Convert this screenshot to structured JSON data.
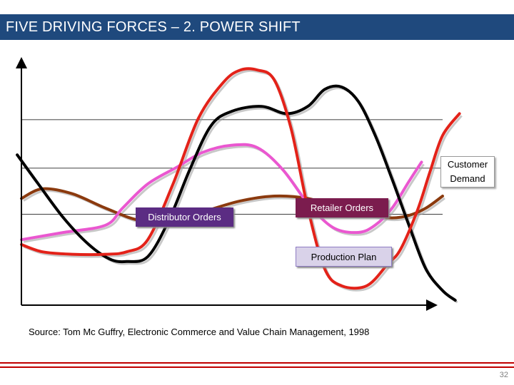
{
  "slide": {
    "title": "FIVE DRIVING FORCES – 2. POWER SHIFT",
    "source": "Source: Tom Mc Guffry, Electronic Commerce and Value Chain Management, 1998",
    "page_number": "32"
  },
  "chart_data": {
    "type": "line",
    "title": "",
    "xlabel": "",
    "ylabel": "",
    "x_ticks": [],
    "y_ticks": [],
    "grid": "horizontal",
    "gridline_levels": [
      0.765,
      0.565,
      0.375
    ],
    "ylim": [
      0,
      1
    ],
    "xlim": [
      0,
      1
    ],
    "series": [
      {
        "name": "Customer Demand",
        "color": "#8b3a0e",
        "points": [
          [
            0,
            0.44
          ],
          [
            0.05,
            0.48
          ],
          [
            0.12,
            0.46
          ],
          [
            0.2,
            0.4
          ],
          [
            0.28,
            0.35
          ],
          [
            0.36,
            0.35
          ],
          [
            0.44,
            0.39
          ],
          [
            0.52,
            0.43
          ],
          [
            0.6,
            0.45
          ],
          [
            0.68,
            0.44
          ],
          [
            0.76,
            0.4
          ],
          [
            0.84,
            0.37
          ],
          [
            0.88,
            0.36
          ],
          [
            0.92,
            0.37
          ],
          [
            0.96,
            0.4
          ],
          [
            1.0,
            0.45
          ]
        ]
      },
      {
        "name": "Retailer Orders",
        "color": "#ea57d0",
        "points": [
          [
            0,
            0.27
          ],
          [
            0.1,
            0.3
          ],
          [
            0.2,
            0.33
          ],
          [
            0.24,
            0.4
          ],
          [
            0.3,
            0.5
          ],
          [
            0.37,
            0.57
          ],
          [
            0.43,
            0.63
          ],
          [
            0.5,
            0.66
          ],
          [
            0.56,
            0.65
          ],
          [
            0.62,
            0.56
          ],
          [
            0.68,
            0.42
          ],
          [
            0.74,
            0.32
          ],
          [
            0.8,
            0.3
          ],
          [
            0.84,
            0.33
          ],
          [
            0.88,
            0.4
          ],
          [
            0.92,
            0.51
          ],
          [
            0.95,
            0.59
          ]
        ]
      },
      {
        "name": "Distributor Orders",
        "color": "#000000",
        "points": [
          [
            -0.01,
            0.62
          ],
          [
            0.04,
            0.5
          ],
          [
            0.1,
            0.36
          ],
          [
            0.16,
            0.25
          ],
          [
            0.21,
            0.19
          ],
          [
            0.25,
            0.18
          ],
          [
            0.3,
            0.2
          ],
          [
            0.35,
            0.35
          ],
          [
            0.4,
            0.56
          ],
          [
            0.45,
            0.74
          ],
          [
            0.5,
            0.8
          ],
          [
            0.57,
            0.82
          ],
          [
            0.63,
            0.79
          ],
          [
            0.68,
            0.82
          ],
          [
            0.72,
            0.89
          ],
          [
            0.76,
            0.9
          ],
          [
            0.8,
            0.84
          ],
          [
            0.84,
            0.7
          ],
          [
            0.88,
            0.52
          ],
          [
            0.92,
            0.33
          ],
          [
            0.96,
            0.15
          ],
          [
            1.0,
            0.06
          ],
          [
            1.03,
            0.02
          ]
        ]
      },
      {
        "name": "Production Plan",
        "color": "#e32219",
        "points": [
          [
            0,
            0.25
          ],
          [
            0.05,
            0.22
          ],
          [
            0.12,
            0.21
          ],
          [
            0.2,
            0.21
          ],
          [
            0.25,
            0.22
          ],
          [
            0.3,
            0.27
          ],
          [
            0.36,
            0.5
          ],
          [
            0.42,
            0.77
          ],
          [
            0.48,
            0.92
          ],
          [
            0.52,
            0.97
          ],
          [
            0.56,
            0.97
          ],
          [
            0.6,
            0.93
          ],
          [
            0.64,
            0.73
          ],
          [
            0.68,
            0.4
          ],
          [
            0.72,
            0.15
          ],
          [
            0.76,
            0.08
          ],
          [
            0.82,
            0.08
          ],
          [
            0.87,
            0.17
          ],
          [
            0.9,
            0.23
          ],
          [
            0.94,
            0.39
          ],
          [
            0.97,
            0.55
          ],
          [
            1.0,
            0.7
          ],
          [
            1.04,
            0.79
          ]
        ]
      }
    ],
    "legend": "data labels",
    "labels": {
      "customer_demand": "Customer\nDemand",
      "distributor_orders": "Distributor Orders",
      "retailer_orders": "Retailer Orders",
      "production_plan": "Production Plan"
    }
  }
}
